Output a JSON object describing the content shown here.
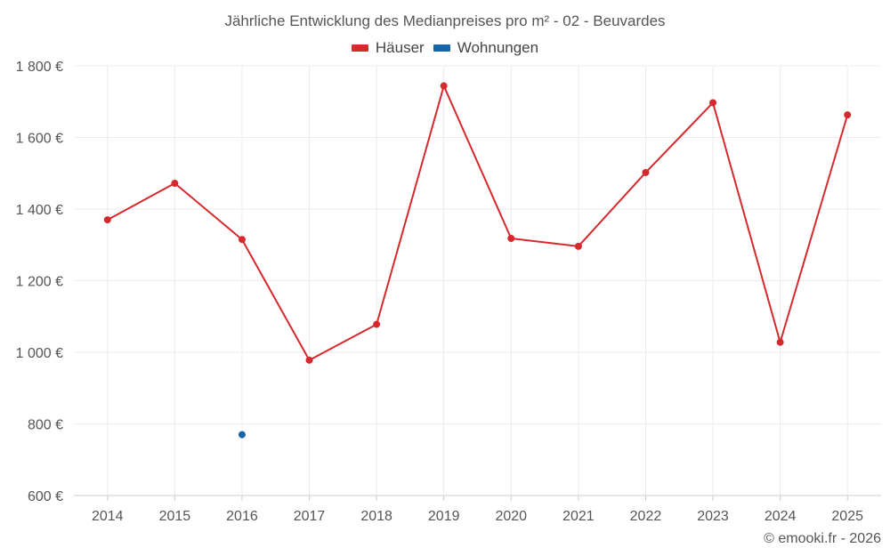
{
  "chart_data": {
    "type": "line",
    "title": "Jährliche Entwicklung des Medianpreises pro m² - 02 - Beuvardes",
    "categories": [
      "2014",
      "2015",
      "2016",
      "2017",
      "2018",
      "2019",
      "2020",
      "2021",
      "2022",
      "2023",
      "2024",
      "2025"
    ],
    "series": [
      {
        "name": "Häuser",
        "color": "#d42a2e",
        "values": [
          1370,
          1472,
          1315,
          978,
          1078,
          1744,
          1318,
          1296,
          1502,
          1697,
          1028,
          1663
        ]
      },
      {
        "name": "Wohnungen",
        "color": "#1565a8",
        "values": [
          null,
          null,
          770,
          null,
          null,
          null,
          null,
          null,
          null,
          null,
          null,
          null
        ]
      }
    ],
    "ylim": [
      600,
      1800
    ],
    "yticks": [
      600,
      800,
      1000,
      1200,
      1400,
      1600,
      1800
    ],
    "ytick_labels": [
      "600 €",
      "800 €",
      "1 000 €",
      "1 200 €",
      "1 400 €",
      "1 600 €",
      "1 800 €"
    ],
    "xlabel": "",
    "ylabel": "",
    "grid": true,
    "legend_position": "top-center"
  },
  "footer": {
    "copyright": "© emooki.fr - 2026"
  }
}
